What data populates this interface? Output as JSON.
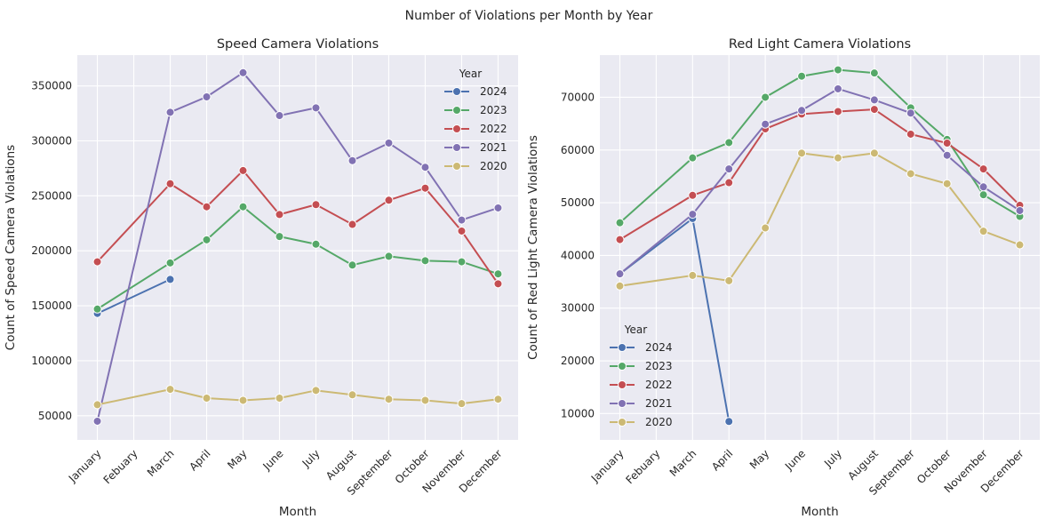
{
  "figure": {
    "title": "Number of Violations per Month by Year"
  },
  "chart_data": [
    {
      "type": "line",
      "title": "Speed Camera Violations",
      "xlabel": "Month",
      "ylabel": "Count of Speed Camera Violations",
      "categories": [
        "January",
        "Febuary",
        "March",
        "April",
        "May",
        "June",
        "July",
        "August",
        "September",
        "October",
        "November",
        "December"
      ],
      "ylim": [
        28000,
        378000
      ],
      "yticks": [
        50000,
        100000,
        150000,
        200000,
        250000,
        300000,
        350000
      ],
      "grid": true,
      "legend": {
        "title": "Year",
        "position": "top-right"
      },
      "series": [
        {
          "name": "2024",
          "color": "#4c72b0",
          "values": [
            143000,
            null,
            174000,
            null,
            null,
            null,
            null,
            null,
            null,
            null,
            null,
            null
          ]
        },
        {
          "name": "2023",
          "color": "#55a868",
          "values": [
            147000,
            null,
            189000,
            210000,
            240000,
            213000,
            206000,
            187000,
            195000,
            191000,
            190000,
            179000
          ]
        },
        {
          "name": "2022",
          "color": "#c44e52",
          "values": [
            190000,
            null,
            261000,
            240000,
            273000,
            233000,
            242000,
            224000,
            246000,
            257000,
            218000,
            170000
          ]
        },
        {
          "name": "2021",
          "color": "#8172b3",
          "values": [
            45000,
            null,
            326000,
            340000,
            362000,
            323000,
            330000,
            282000,
            298000,
            276000,
            228000,
            239000
          ]
        },
        {
          "name": "2020",
          "color": "#ccb974",
          "values": [
            60000,
            null,
            74000,
            66000,
            64000,
            66000,
            73000,
            69000,
            65000,
            64000,
            61000,
            65000
          ]
        }
      ]
    },
    {
      "type": "line",
      "title": "Red Light Camera Violations",
      "xlabel": "Month",
      "ylabel": "Count of Red Light Camera Violations",
      "categories": [
        "January",
        "Febuary",
        "March",
        "April",
        "May",
        "June",
        "July",
        "August",
        "September",
        "October",
        "November",
        "December"
      ],
      "ylim": [
        5000,
        78000
      ],
      "yticks": [
        10000,
        20000,
        30000,
        40000,
        50000,
        60000,
        70000
      ],
      "grid": true,
      "legend": {
        "title": "Year",
        "position": "bottom-left"
      },
      "series": [
        {
          "name": "2024",
          "color": "#4c72b0",
          "values": [
            36500,
            null,
            47000,
            8500,
            null,
            null,
            null,
            null,
            null,
            null,
            null,
            null
          ]
        },
        {
          "name": "2023",
          "color": "#55a868",
          "values": [
            46200,
            null,
            58500,
            61400,
            70000,
            74000,
            75200,
            74600,
            68000,
            62000,
            51500,
            47400
          ]
        },
        {
          "name": "2022",
          "color": "#c44e52",
          "values": [
            43000,
            null,
            51400,
            53800,
            64000,
            66800,
            67300,
            67700,
            63000,
            61300,
            56400,
            49500
          ]
        },
        {
          "name": "2021",
          "color": "#8172b3",
          "values": [
            36500,
            null,
            47800,
            56400,
            64900,
            67500,
            71600,
            69500,
            67000,
            59000,
            53000,
            48500
          ]
        },
        {
          "name": "2020",
          "color": "#ccb974",
          "values": [
            34200,
            null,
            36200,
            35200,
            45200,
            59400,
            58500,
            59400,
            55500,
            53600,
            44600,
            42000
          ]
        }
      ]
    }
  ]
}
